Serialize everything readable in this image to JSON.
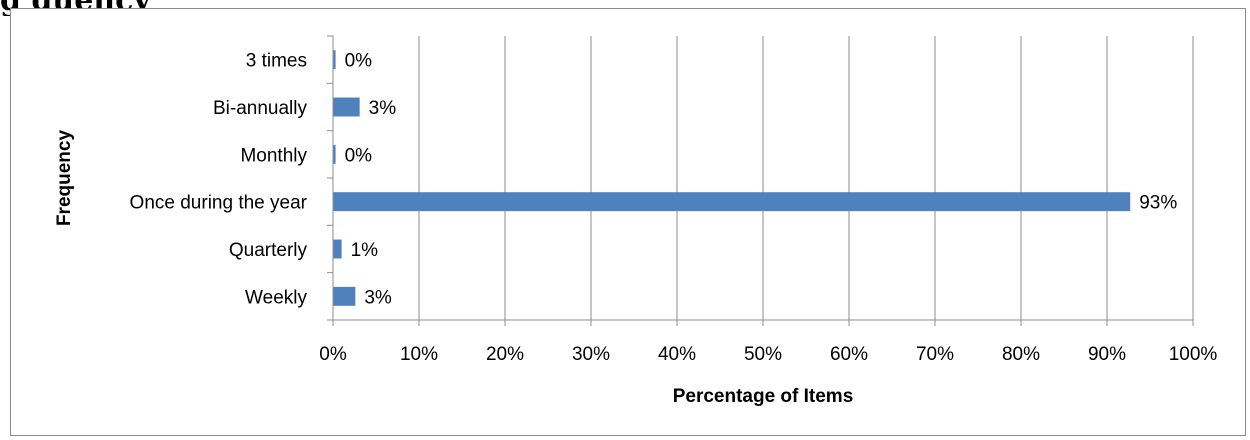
{
  "page": {
    "heading_fragment": "g        quency"
  },
  "chart_data": {
    "type": "bar",
    "orientation": "horizontal",
    "title": "",
    "xlabel": "Percentage of Items",
    "ylabel": "Frequency",
    "xlim": [
      0,
      100
    ],
    "x_ticks": [
      0,
      10,
      20,
      30,
      40,
      50,
      60,
      70,
      80,
      90,
      100
    ],
    "x_tick_labels": [
      "0%",
      "10%",
      "20%",
      "30%",
      "40%",
      "50%",
      "60%",
      "70%",
      "80%",
      "90%",
      "100%"
    ],
    "grid": "vertical",
    "legend": "none",
    "bar_color": "#4f81bd",
    "categories": [
      "3 times",
      "Bi-annually",
      "Monthly",
      "Once during the year",
      "Quarterly",
      "Weekly"
    ],
    "values": [
      0.3,
      3.1,
      0.3,
      92.7,
      1.0,
      2.6
    ],
    "data_labels": [
      "0%",
      "3%",
      "0%",
      "93%",
      "1%",
      "3%"
    ]
  }
}
